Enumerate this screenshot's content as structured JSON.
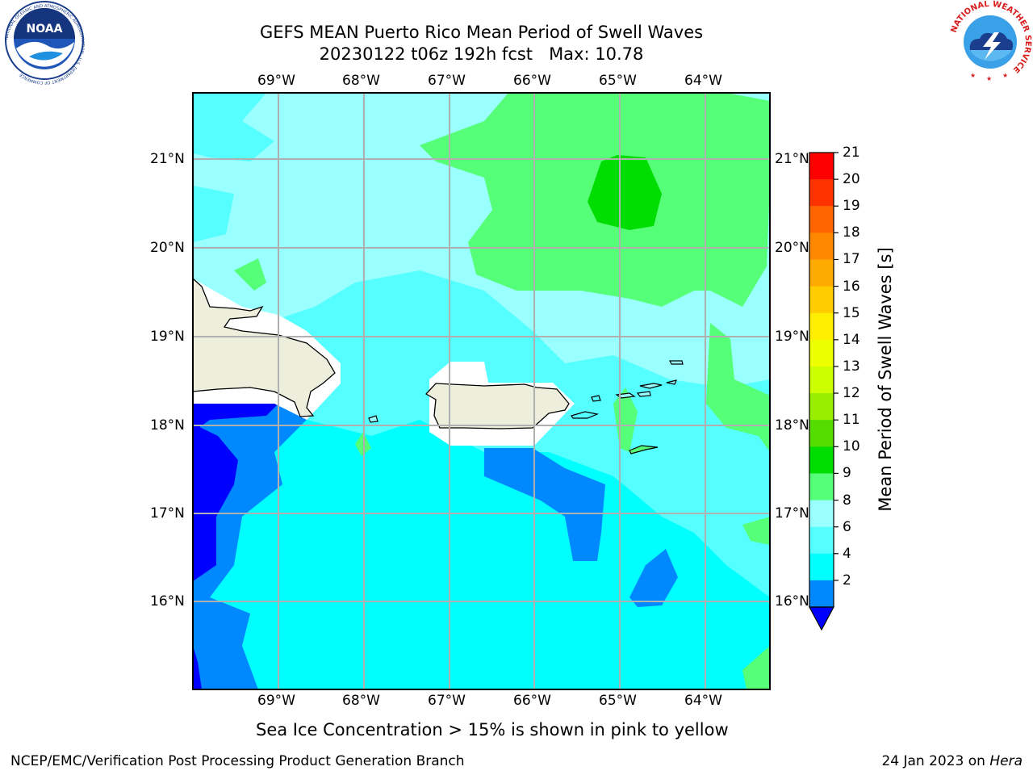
{
  "title": {
    "line1": "GEFS MEAN Puerto Rico Mean Period of Swell Waves",
    "line2": "20230122 t06z 192h fcst   Max: 10.78"
  },
  "map": {
    "lon_labels": [
      "69°W",
      "68°W",
      "67°W",
      "66°W",
      "65°W",
      "64°W"
    ],
    "lat_labels": [
      "21°N",
      "20°N",
      "19°N",
      "18°N",
      "17°N",
      "16°N"
    ],
    "lon_range": [
      -70.0,
      -63.25
    ],
    "lat_range": [
      15.0,
      21.75
    ]
  },
  "colorbar": {
    "label": "Mean Period of Swell Waves [s]",
    "ticks": [
      "21",
      "20",
      "19",
      "18",
      "17",
      "16",
      "15",
      "14",
      "13",
      "12",
      "11",
      "10",
      "9",
      "8",
      "6",
      "4",
      "2"
    ],
    "colors": [
      "#ff0000",
      "#ff3300",
      "#ff6600",
      "#ff8800",
      "#ffaa00",
      "#ffcc00",
      "#ffee00",
      "#eeff00",
      "#ccff00",
      "#99ee00",
      "#55dd00",
      "#00dd00",
      "#55ff77",
      "#99ffff",
      "#55ffff",
      "#00ffff",
      "#0088ff"
    ],
    "extend_color": "#0000ff"
  },
  "caption": "Sea Ice Concentration > 15% is shown in pink to yellow",
  "footer": {
    "left": "NCEP/EMC/Verification Post Processing Product Generation Branch",
    "right_date": "24 Jan 2023 on ",
    "right_machine": "Hera"
  },
  "logos": {
    "noaa": "NOAA",
    "noaa_ring": "NATIONAL OCEANIC AND ATMOSPHERIC ADMINISTRATION · U.S. DEPARTMENT OF COMMERCE",
    "nws_ring": "NATIONAL WEATHER SERVICE"
  },
  "colors": {
    "water_4_6": "#00ffff",
    "water_6_8": "#55ffff",
    "water_8_9": "#99ffff",
    "water_9_10": "#55ff77",
    "water_10_11": "#00dd00",
    "water_2_4": "#0088ff",
    "water_lt2": "#0000ff",
    "land": "#eeeedd",
    "grid": "#b0b0b0"
  }
}
